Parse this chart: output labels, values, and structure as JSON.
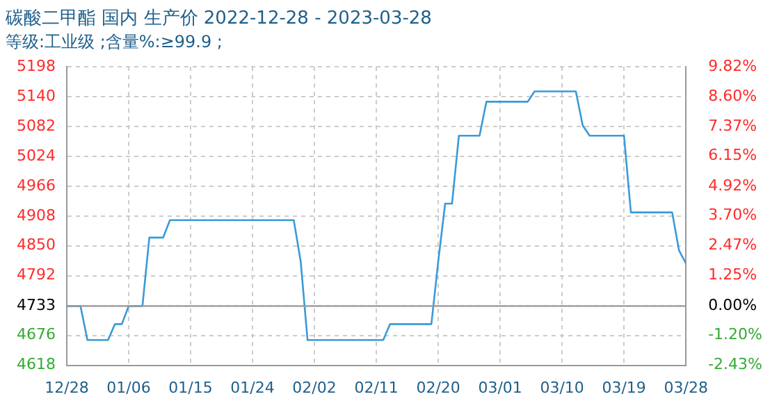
{
  "chart_data": {
    "type": "line",
    "title": "碳酸二甲酯 国内 生产价 2022-12-28 - 2023-03-28",
    "subtitle": "等级:工业级 ;含量%:≥99.9 ;",
    "x": [
      "2022-12-28",
      "2022-12-30",
      "2022-12-31",
      "2023-01-03",
      "2023-01-04",
      "2023-01-05",
      "2023-01-06",
      "2023-01-08",
      "2023-01-09",
      "2023-01-11",
      "2023-01-12",
      "2023-01-30",
      "2023-01-31",
      "2023-02-01",
      "2023-02-12",
      "2023-02-13",
      "2023-02-19",
      "2023-02-20",
      "2023-02-21",
      "2023-02-22",
      "2023-02-23",
      "2023-02-26",
      "2023-02-27",
      "2023-03-05",
      "2023-03-06",
      "2023-03-12",
      "2023-03-13",
      "2023-03-14",
      "2023-03-19",
      "2023-03-20",
      "2023-03-26",
      "2023-03-27",
      "2023-03-28"
    ],
    "series": [
      {
        "color": "#3a9ad9",
        "values": [
          4733,
          4733,
          4667,
          4667,
          4698,
          4698,
          4733,
          4733,
          4866,
          4866,
          4900,
          4900,
          4820,
          4667,
          4667,
          4698,
          4698,
          4820,
          4932,
          4932,
          5064,
          5064,
          5130,
          5130,
          5150,
          5150,
          5084,
          5064,
          5064,
          4915,
          4915,
          4841,
          4816
        ]
      }
    ],
    "xlim": [
      "2022-12-28",
      "2023-03-28"
    ],
    "xticks": [
      {
        "value": "2022-12-28",
        "label": "12/28"
      },
      {
        "value": "2023-01-06",
        "label": "01/06"
      },
      {
        "value": "2023-01-15",
        "label": "01/15"
      },
      {
        "value": "2023-01-24",
        "label": "01/24"
      },
      {
        "value": "2023-02-02",
        "label": "02/02"
      },
      {
        "value": "2023-02-11",
        "label": "02/11"
      },
      {
        "value": "2023-02-20",
        "label": "02/20"
      },
      {
        "value": "2023-03-01",
        "label": "03/01"
      },
      {
        "value": "2023-03-10",
        "label": "03/10"
      },
      {
        "value": "2023-03-19",
        "label": "03/19"
      },
      {
        "value": "2023-03-28",
        "label": "03/28"
      }
    ],
    "ylim": [
      4618,
      5198
    ],
    "yticks": [
      4618,
      4676,
      4733,
      4792,
      4850,
      4908,
      4966,
      5024,
      5082,
      5140,
      5198
    ],
    "y2lim": [
      -2.43,
      9.82
    ],
    "y2ticks": [
      {
        "value": -2.43,
        "label": "-2.43%"
      },
      {
        "value": -1.2,
        "label": "-1.20%"
      },
      {
        "value": 0,
        "label": "0.00%"
      },
      {
        "value": 1.25,
        "label": "1.25%"
      },
      {
        "value": 2.47,
        "label": "2.47%"
      },
      {
        "value": 3.7,
        "label": "3.70%"
      },
      {
        "value": 4.92,
        "label": "4.92%"
      },
      {
        "value": 6.15,
        "label": "6.15%"
      },
      {
        "value": 7.37,
        "label": "7.37%"
      },
      {
        "value": 8.6,
        "label": "8.60%"
      },
      {
        "value": 9.82,
        "label": "9.82%"
      }
    ],
    "ref_lines": [
      {
        "axis": "y",
        "value": 4733,
        "color": "#999999"
      }
    ],
    "grid": true,
    "legend": false
  }
}
